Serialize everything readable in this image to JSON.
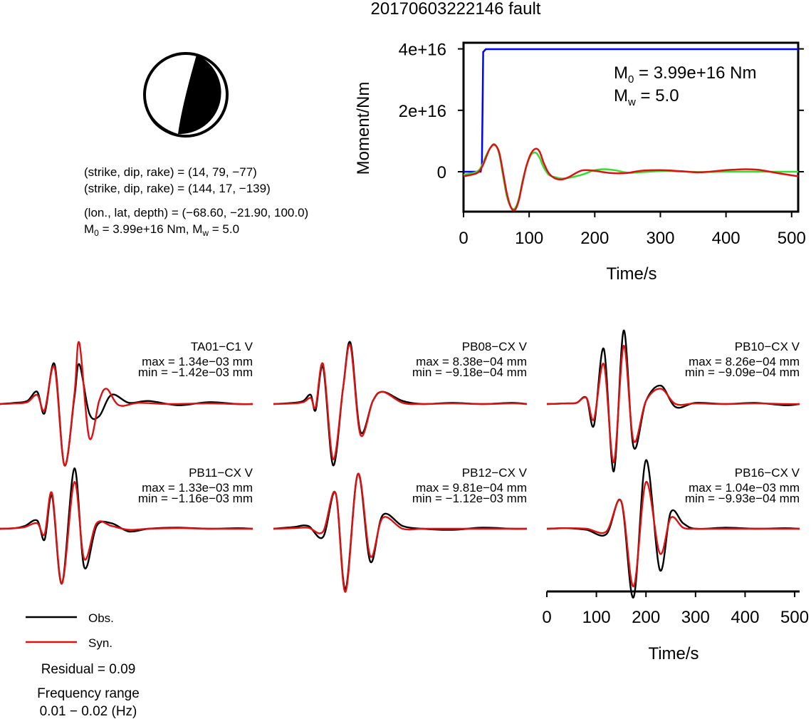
{
  "title": "20170603222146 fault",
  "mechanism": {
    "line1": "(strike, dip, rake) = (14, 79, −77)",
    "line2": "(strike, dip, rake) = (144, 17, −139)",
    "line3": "(lon., lat, depth) = (−68.60, −21.90, 100.0)",
    "m0_prefix": "M",
    "m0_sub": "0",
    "m0_text": " = 3.99e+16 Nm, M",
    "mw_sub": "w",
    "mw_text": " = 5.0"
  },
  "chart_data": [
    {
      "type": "line",
      "name": "moment-function",
      "xlabel": "Time/s",
      "ylabel": "Moment/Nm",
      "xlim": [
        0,
        510
      ],
      "ylim": [
        -1.3e+16,
        4.2e+16
      ],
      "xticks": [
        "0",
        "100",
        "200",
        "300",
        "400",
        "500"
      ],
      "yticks": [
        "0",
        "2e+16",
        "4e+16"
      ],
      "annotation": {
        "m0_main": "M",
        "m0_sub": "0",
        "m0_value": " = 3.99e+16 Nm",
        "mw_main": "M",
        "mw_sub": "w",
        "mw_value": " = 5.0"
      },
      "series": [
        {
          "color": "#0000ff",
          "x": [
            0,
            26,
            28,
            30,
            34,
            510
          ],
          "y": [
            0,
            0,
            2000000000000000.0,
            3.9e+16,
            3.99e+16,
            3.99e+16
          ]
        },
        {
          "color": "#33dd33",
          "x": [
            0,
            20,
            28,
            34,
            40,
            47,
            54,
            60,
            66,
            72,
            78,
            84,
            90,
            96,
            103,
            110,
            116,
            122,
            130,
            140,
            150,
            160,
            180,
            200,
            215,
            230,
            250,
            270,
            300,
            330,
            360,
            400,
            450,
            510
          ],
          "y": [
            -1000000000000000.0,
            0,
            2000000000000000.0,
            5000000000000000.0,
            7500000000000000.0,
            9000000000000000.0,
            6000000000000000.0,
            -1000000000000000.0,
            -8000000000000000.0,
            -1.15e+16,
            -1.2e+16,
            -9000000000000000.0,
            -3000000000000000.0,
            2000000000000000.0,
            5500000000000000.0,
            6200000000000000.0,
            4500000000000000.0,
            1500000000000000.0,
            -1000000000000000.0,
            -1800000000000000.0,
            -2200000000000000.0,
            -2000000000000000.0,
            -1000000000000000.0,
            500000000000000.0,
            800000000000000.0,
            500000000000000.0,
            -300000000000000.0,
            -200000000000000.0,
            200000000000000.0,
            100000000000000.0,
            -100000000000000.0,
            0,
            0,
            0
          ]
        },
        {
          "color": "#dd1111",
          "x": [
            0,
            20,
            28,
            34,
            40,
            47,
            54,
            60,
            66,
            72,
            78,
            84,
            90,
            96,
            103,
            110,
            116,
            122,
            130,
            140,
            150,
            160,
            180,
            200,
            215,
            230,
            250,
            270,
            300,
            330,
            360,
            400,
            430,
            450,
            480,
            510
          ],
          "y": [
            -1500000000000000.0,
            -500000000000000.0,
            1500000000000000.0,
            4500000000000000.0,
            7500000000000000.0,
            8800000000000000.0,
            6500000000000000.0,
            0,
            -7000000000000000.0,
            -1.15e+16,
            -1.25e+16,
            -9500000000000000.0,
            -3500000000000000.0,
            2000000000000000.0,
            6000000000000000.0,
            7500000000000000.0,
            6500000000000000.0,
            3000000000000000.0,
            -500000000000000.0,
            -2200000000000000.0,
            -2500000000000000.0,
            -1800000000000000.0,
            400000000000000.0,
            300000000000000.0,
            -200000000000000.0,
            -500000000000000.0,
            -400000000000000.0,
            300000000000000.0,
            500000000000000.0,
            200000000000000.0,
            -200000000000000.0,
            500000000000000.0,
            800000000000000.0,
            600000000000000.0,
            -500000000000000.0,
            -1500000000000000.0
          ]
        }
      ]
    },
    {
      "type": "line",
      "name": "waveforms",
      "xlabel": "Time/s",
      "xlim": [
        0,
        510
      ],
      "xticks": [
        "0",
        "100",
        "200",
        "300",
        "400",
        "500"
      ],
      "legend": {
        "obs": "Obs.",
        "syn": "Syn.",
        "obs_color": "#000000",
        "syn_color": "#dd1111"
      },
      "residual": "Residual = 0.09",
      "frequency_label": "Frequency range",
      "frequency_value": "0.01 − 0.02 (Hz)",
      "stations": [
        {
          "name": "TA01−C1 V",
          "max": "max = 1.34e−03 mm",
          "min": "min = −1.42e−03 mm",
          "obs": [
            [
              0,
              0
            ],
            [
              30,
              0.02
            ],
            [
              55,
              0.05
            ],
            [
              75,
              0.2
            ],
            [
              90,
              -0.15
            ],
            [
              110,
              0.65
            ],
            [
              130,
              -1.0
            ],
            [
              150,
              0.1
            ],
            [
              160,
              0.65
            ],
            [
              180,
              -0.15
            ],
            [
              200,
              -0.2
            ],
            [
              225,
              0.15
            ],
            [
              260,
              0.02
            ],
            [
              300,
              0.05
            ],
            [
              360,
              -0.02
            ],
            [
              420,
              0.03
            ],
            [
              480,
              0
            ],
            [
              510,
              0
            ]
          ],
          "syn": [
            [
              0,
              0
            ],
            [
              30,
              0.01
            ],
            [
              55,
              0.03
            ],
            [
              75,
              0.15
            ],
            [
              90,
              -0.1
            ],
            [
              110,
              0.6
            ],
            [
              130,
              -1.0
            ],
            [
              150,
              0.15
            ],
            [
              160,
              1.0
            ],
            [
              180,
              -0.55
            ],
            [
              200,
              0.05
            ],
            [
              215,
              0.25
            ],
            [
              240,
              -0.02
            ],
            [
              280,
              0.02
            ],
            [
              340,
              0
            ],
            [
              420,
              0.01
            ],
            [
              480,
              0
            ],
            [
              510,
              0
            ]
          ]
        },
        {
          "name": "PB08−CX V",
          "max": "max = 8.38e−04 mm",
          "min": "min = −9.18e−04 mm",
          "obs": [
            [
              0,
              0
            ],
            [
              40,
              0.02
            ],
            [
              60,
              0.05
            ],
            [
              75,
              0.15
            ],
            [
              85,
              -0.1
            ],
            [
              100,
              0.6
            ],
            [
              120,
              -1.0
            ],
            [
              140,
              0.25
            ],
            [
              155,
              1.0
            ],
            [
              175,
              -0.45
            ],
            [
              200,
              0.05
            ],
            [
              220,
              0.2
            ],
            [
              260,
              0.05
            ],
            [
              300,
              0
            ],
            [
              360,
              0.02
            ],
            [
              420,
              0
            ],
            [
              480,
              0.02
            ],
            [
              510,
              0
            ]
          ],
          "syn": [
            [
              0,
              0
            ],
            [
              40,
              0.01
            ],
            [
              60,
              0.03
            ],
            [
              75,
              0.1
            ],
            [
              85,
              -0.05
            ],
            [
              100,
              0.65
            ],
            [
              120,
              -0.9
            ],
            [
              140,
              0.25
            ],
            [
              155,
              0.95
            ],
            [
              175,
              -0.5
            ],
            [
              200,
              0.05
            ],
            [
              220,
              0.2
            ],
            [
              260,
              0.02
            ],
            [
              300,
              0
            ],
            [
              360,
              0.01
            ],
            [
              420,
              0
            ],
            [
              480,
              0.01
            ],
            [
              510,
              0
            ]
          ]
        },
        {
          "name": "PB10−CX V",
          "max": "max = 8.26e−04 mm",
          "min": "min = −9.09e−04 mm",
          "obs": [
            [
              0,
              0
            ],
            [
              40,
              0.01
            ],
            [
              60,
              0.02
            ],
            [
              80,
              0.1
            ],
            [
              95,
              -0.35
            ],
            [
              115,
              0.9
            ],
            [
              135,
              -1.1
            ],
            [
              155,
              1.2
            ],
            [
              175,
              -0.7
            ],
            [
              200,
              0.05
            ],
            [
              230,
              0.3
            ],
            [
              260,
              -0.05
            ],
            [
              300,
              0.02
            ],
            [
              360,
              0
            ],
            [
              420,
              0.02
            ],
            [
              480,
              -0.02
            ],
            [
              510,
              0
            ]
          ],
          "syn": [
            [
              0,
              0
            ],
            [
              40,
              0.01
            ],
            [
              60,
              0.02
            ],
            [
              80,
              0.1
            ],
            [
              95,
              -0.25
            ],
            [
              115,
              0.65
            ],
            [
              135,
              -0.95
            ],
            [
              155,
              0.95
            ],
            [
              175,
              -0.6
            ],
            [
              200,
              0.05
            ],
            [
              230,
              0.25
            ],
            [
              260,
              0
            ],
            [
              300,
              0.01
            ],
            [
              360,
              0
            ],
            [
              420,
              0.01
            ],
            [
              480,
              0
            ],
            [
              510,
              0
            ]
          ]
        },
        {
          "name": "PB11−CX V",
          "max": "max = 1.33e−03 mm",
          "min": "min = −1.16e−03 mm",
          "obs": [
            [
              0,
              0
            ],
            [
              30,
              0.01
            ],
            [
              50,
              0.05
            ],
            [
              75,
              0.15
            ],
            [
              90,
              -0.2
            ],
            [
              105,
              0.6
            ],
            [
              125,
              -1.0
            ],
            [
              150,
              1.1
            ],
            [
              170,
              -0.7
            ],
            [
              195,
              0.05
            ],
            [
              225,
              0.1
            ],
            [
              260,
              -0.05
            ],
            [
              300,
              0
            ],
            [
              360,
              0.02
            ],
            [
              420,
              0
            ],
            [
              480,
              0.01
            ],
            [
              510,
              0
            ]
          ],
          "syn": [
            [
              0,
              0
            ],
            [
              30,
              0.01
            ],
            [
              50,
              0.03
            ],
            [
              75,
              0.1
            ],
            [
              90,
              -0.1
            ],
            [
              105,
              0.65
            ],
            [
              125,
              -1.0
            ],
            [
              150,
              0.85
            ],
            [
              170,
              -0.55
            ],
            [
              195,
              0.1
            ],
            [
              225,
              0.05
            ],
            [
              260,
              -0.02
            ],
            [
              300,
              0
            ],
            [
              360,
              0.01
            ],
            [
              420,
              0
            ],
            [
              480,
              0
            ],
            [
              510,
              0
            ]
          ]
        },
        {
          "name": "PB12−CX V",
          "max": "max = 9.81e−04 mm",
          "min": "min = −1.12e−03 mm",
          "obs": [
            [
              0,
              0
            ],
            [
              40,
              0.03
            ],
            [
              70,
              0.05
            ],
            [
              100,
              -0.15
            ],
            [
              125,
              0.65
            ],
            [
              145,
              -1.1
            ],
            [
              170,
              1.0
            ],
            [
              195,
              -0.6
            ],
            [
              220,
              0.25
            ],
            [
              260,
              0.05
            ],
            [
              300,
              0
            ],
            [
              360,
              -0.02
            ],
            [
              420,
              0.02
            ],
            [
              480,
              0
            ],
            [
              510,
              0
            ]
          ],
          "syn": [
            [
              0,
              0
            ],
            [
              40,
              0.01
            ],
            [
              70,
              0.02
            ],
            [
              100,
              -0.05
            ],
            [
              125,
              0.65
            ],
            [
              145,
              -1.15
            ],
            [
              170,
              1.0
            ],
            [
              195,
              -0.5
            ],
            [
              220,
              0.2
            ],
            [
              260,
              0
            ],
            [
              300,
              0
            ],
            [
              360,
              0
            ],
            [
              420,
              0
            ],
            [
              480,
              0
            ],
            [
              510,
              0
            ]
          ]
        },
        {
          "name": "PB16−CX V",
          "max": "max = 1.04e−03 mm",
          "min": "min = −9.93e−04 mm",
          "obs": [
            [
              0,
              0
            ],
            [
              40,
              0.01
            ],
            [
              80,
              -0.02
            ],
            [
              120,
              -0.1
            ],
            [
              150,
              0.5
            ],
            [
              175,
              -1.25
            ],
            [
              200,
              1.25
            ],
            [
              228,
              -0.75
            ],
            [
              250,
              0.3
            ],
            [
              275,
              0.1
            ],
            [
              300,
              0
            ],
            [
              360,
              0.02
            ],
            [
              420,
              0
            ],
            [
              480,
              0.01
            ],
            [
              510,
              0
            ]
          ],
          "syn": [
            [
              0,
              0
            ],
            [
              40,
              0.01
            ],
            [
              80,
              0
            ],
            [
              120,
              -0.05
            ],
            [
              150,
              0.5
            ],
            [
              175,
              -1.05
            ],
            [
              200,
              0.85
            ],
            [
              228,
              -0.45
            ],
            [
              250,
              0.2
            ],
            [
              275,
              0.02
            ],
            [
              300,
              0
            ],
            [
              360,
              0
            ],
            [
              420,
              0
            ],
            [
              480,
              0
            ],
            [
              510,
              0
            ]
          ]
        }
      ]
    }
  ]
}
